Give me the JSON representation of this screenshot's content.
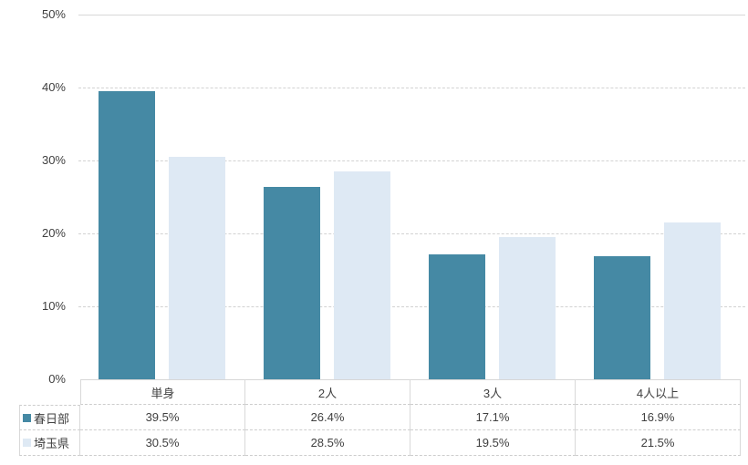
{
  "chart_data": {
    "type": "bar",
    "title": "",
    "categories": [
      "単身",
      "2人",
      "3人",
      "4人以上"
    ],
    "series": [
      {
        "name": "春日部",
        "color": "#4589A4",
        "values": [
          39.5,
          26.4,
          17.1,
          16.9
        ]
      },
      {
        "name": "埼玉県",
        "color": "#DEE9F4",
        "values": [
          30.5,
          28.5,
          19.5,
          21.5
        ]
      }
    ],
    "table_values": [
      [
        "39.5%",
        "26.4%",
        "17.1%",
        "16.9%"
      ],
      [
        "30.5%",
        "28.5%",
        "19.5%",
        "21.5%"
      ]
    ],
    "xlabel": "",
    "ylabel": "",
    "ylim": [
      0,
      50
    ],
    "ytick_step": 10,
    "ytick_labels": [
      "0%",
      "10%",
      "20%",
      "30%",
      "40%",
      "50%"
    ],
    "grid": "horizontal-dashed",
    "legend_position": "data-table-left-column",
    "value_suffix": "%"
  },
  "colors": {
    "series_kasukabe": "#4589A4",
    "series_saitama": "#DEE9F4",
    "gridline": "#D2D2D2",
    "table_border": "#D9D9D9",
    "text": "#404040",
    "background": "#FFFFFF"
  }
}
